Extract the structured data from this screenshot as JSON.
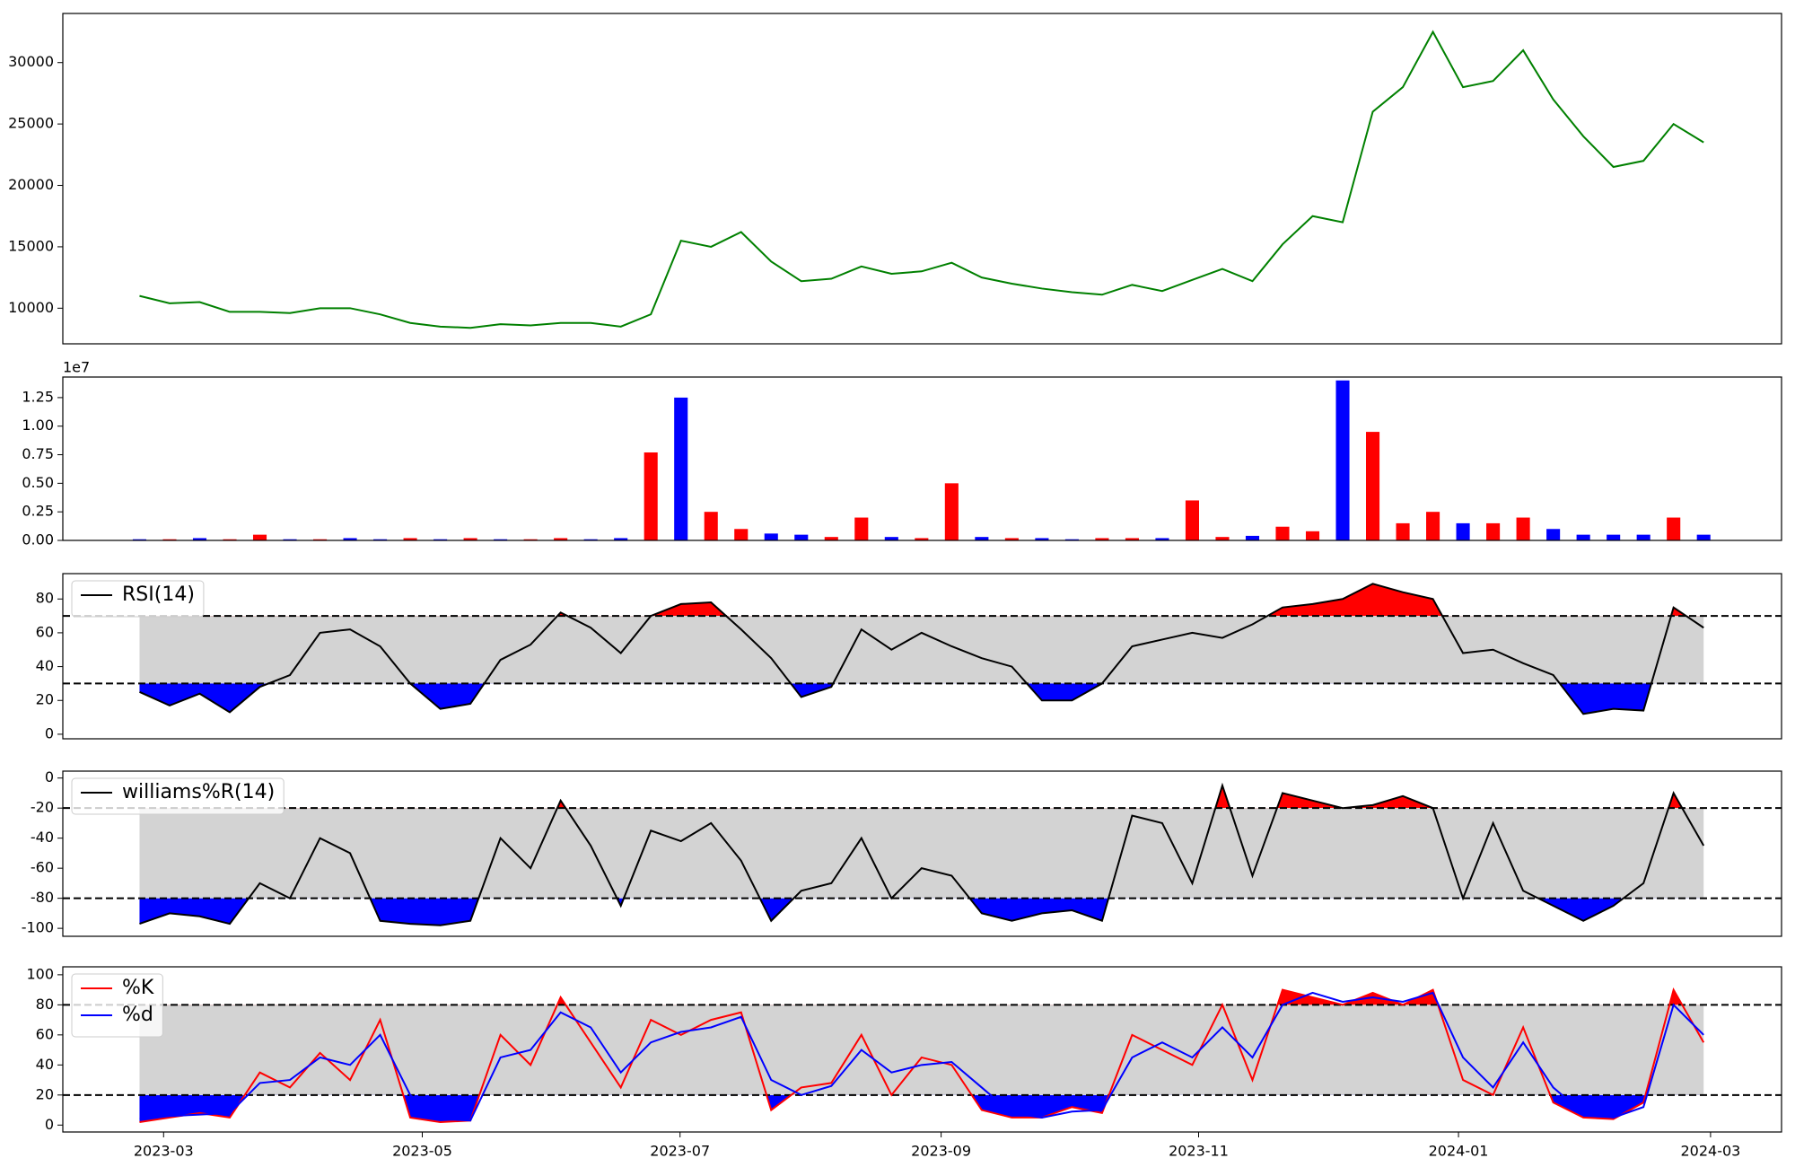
{
  "chart_data": [
    {
      "type": "line",
      "xlim": [
        -2.55,
        54.59
      ],
      "ylim": [
        7100,
        34000
      ],
      "yticks": [
        10000,
        15000,
        20000,
        25000,
        30000
      ],
      "series": [
        {
          "color": "#008000",
          "values": [
            11000,
            10400,
            10500,
            9700,
            9700,
            9600,
            10000,
            10000,
            9500,
            8800,
            8500,
            8400,
            8700,
            8600,
            8800,
            8800,
            8500,
            9500,
            15500,
            15000,
            16200,
            13800,
            12200,
            12400,
            13400,
            12800,
            13000,
            13700,
            12500,
            12000,
            11600,
            11300,
            11100,
            11900,
            11400,
            12300,
            13200,
            12200,
            15200,
            17500,
            17000,
            26000,
            28000,
            32500,
            28000,
            28500,
            31000,
            27000,
            24000,
            21500,
            22000,
            25000,
            23500
          ]
        }
      ]
    },
    {
      "type": "bar",
      "xlim": [
        -2.55,
        54.59
      ],
      "ylim": [
        0,
        1.43
      ],
      "offset_label": "1e7",
      "yticks": [
        {
          "value": 0,
          "label": "0.00"
        },
        0.25,
        {
          "value": 0.5,
          "label": "0.50"
        },
        0.75,
        {
          "value": 1,
          "label": "1.00"
        },
        1.25
      ],
      "values": [
        0.01,
        0.01,
        0.02,
        0.01,
        0.05,
        0.01,
        0.01,
        0.02,
        0.01,
        0.02,
        0.01,
        0.02,
        0.01,
        0.01,
        0.02,
        0.01,
        0.02,
        0.77,
        1.25,
        0.25,
        0.1,
        0.06,
        0.05,
        0.03,
        0.2,
        0.03,
        0.02,
        0.5,
        0.03,
        0.02,
        0.02,
        0.01,
        0.02,
        0.02,
        0.02,
        0.35,
        0.03,
        0.04,
        0.12,
        0.08,
        1.4,
        0.95,
        0.15,
        0.25,
        0.15,
        0.15,
        0.2,
        0.1,
        0.05,
        0.05,
        0.05,
        0.2,
        0.05
      ],
      "colors": [
        "#0000ff",
        "#ff0000",
        "#0000ff",
        "#ff0000",
        "#ff0000",
        "#0000ff",
        "#ff0000",
        "#0000ff",
        "#0000ff",
        "#ff0000",
        "#0000ff",
        "#ff0000",
        "#0000ff",
        "#ff0000",
        "#ff0000",
        "#0000ff",
        "#0000ff",
        "#ff0000",
        "#0000ff",
        "#ff0000",
        "#ff0000",
        "#0000ff",
        "#0000ff",
        "#ff0000",
        "#ff0000",
        "#0000ff",
        "#ff0000",
        "#ff0000",
        "#0000ff",
        "#ff0000",
        "#0000ff",
        "#0000ff",
        "#ff0000",
        "#ff0000",
        "#0000ff",
        "#ff0000",
        "#ff0000",
        "#0000ff",
        "#ff0000",
        "#ff0000",
        "#0000ff",
        "#ff0000",
        "#ff0000",
        "#ff0000",
        "#0000ff",
        "#ff0000",
        "#ff0000",
        "#0000ff",
        "#0000ff",
        "#0000ff",
        "#0000ff",
        "#ff0000",
        "#0000ff"
      ]
    },
    {
      "type": "line",
      "xlim": [
        -2.55,
        54.59
      ],
      "ylim": [
        -2.7,
        95
      ],
      "yticks": [
        0,
        20,
        40,
        60,
        80
      ],
      "band": [
        30,
        70
      ],
      "legend": "upper left",
      "series": [
        {
          "name": "RSI(14)",
          "color": "#000000",
          "values": [
            25,
            17,
            24,
            13,
            28,
            35,
            60,
            62,
            52,
            30,
            15,
            18,
            44,
            53,
            72,
            63,
            48,
            70,
            77,
            78,
            62,
            45,
            22,
            28,
            62,
            50,
            60,
            52,
            45,
            40,
            20,
            20,
            30,
            52,
            56,
            60,
            57,
            65,
            75,
            77,
            80,
            89,
            84,
            80,
            48,
            50,
            42,
            35,
            12,
            15,
            14,
            75,
            63
          ]
        }
      ]
    },
    {
      "type": "line",
      "xlim": [
        -2.55,
        54.59
      ],
      "ylim": [
        -105.3,
        4.6
      ],
      "yticks": [
        -100,
        -80,
        -60,
        -40,
        -20,
        0
      ],
      "band": [
        -80,
        -20
      ],
      "legend": "upper left",
      "series": [
        {
          "name": "williams%R(14)",
          "color": "#000000",
          "values": [
            -97,
            -90,
            -92,
            -97,
            -70,
            -80,
            -40,
            -50,
            -95,
            -97,
            -98,
            -95,
            -40,
            -60,
            -15,
            -45,
            -85,
            -35,
            -42,
            -30,
            -55,
            -95,
            -75,
            -70,
            -40,
            -80,
            -60,
            -65,
            -90,
            -95,
            -90,
            -88,
            -95,
            -25,
            -30,
            -70,
            -5,
            -65,
            -10,
            -15,
            -20,
            -18,
            -12,
            -20,
            -80,
            -30,
            -75,
            -85,
            -95,
            -85,
            -70,
            -10,
            -45
          ]
        }
      ]
    },
    {
      "type": "line",
      "xlim": [
        -2.55,
        54.59
      ],
      "ylim": [
        -4.6,
        105.3
      ],
      "yticks": [
        0,
        20,
        40,
        60,
        80,
        100
      ],
      "band": [
        20,
        80
      ],
      "legend": "upper left",
      "xticks": [
        {
          "value": 0.8,
          "label": "2023-03"
        },
        {
          "value": 9.4,
          "label": "2023-05"
        },
        {
          "value": 17.97,
          "label": "2023-07"
        },
        {
          "value": 26.65,
          "label": "2023-09"
        },
        {
          "value": 35.21,
          "label": "2023-11"
        },
        {
          "value": 43.85,
          "label": "2024-01"
        },
        {
          "value": 52.23,
          "label": "2024-03"
        }
      ],
      "series": [
        {
          "name": "%K",
          "color": "#ff0000",
          "values": [
            2,
            5,
            8,
            5,
            35,
            25,
            48,
            30,
            70,
            5,
            2,
            3,
            60,
            40,
            85,
            55,
            25,
            70,
            60,
            70,
            75,
            10,
            25,
            28,
            60,
            20,
            45,
            40,
            10,
            5,
            5,
            12,
            8,
            60,
            50,
            40,
            80,
            30,
            90,
            85,
            80,
            88,
            80,
            90,
            30,
            20,
            65,
            15,
            5,
            4,
            15,
            90,
            55
          ]
        },
        {
          "name": "%d",
          "color": "#0000ff",
          "values": [
            4,
            6,
            7,
            8,
            28,
            30,
            45,
            40,
            60,
            20,
            4,
            3,
            45,
            50,
            75,
            65,
            35,
            55,
            62,
            65,
            72,
            30,
            20,
            26,
            50,
            35,
            40,
            42,
            25,
            8,
            5,
            9,
            10,
            45,
            55,
            45,
            65,
            45,
            80,
            88,
            82,
            85,
            82,
            88,
            45,
            25,
            55,
            25,
            8,
            5,
            12,
            80,
            60
          ]
        }
      ]
    }
  ]
}
